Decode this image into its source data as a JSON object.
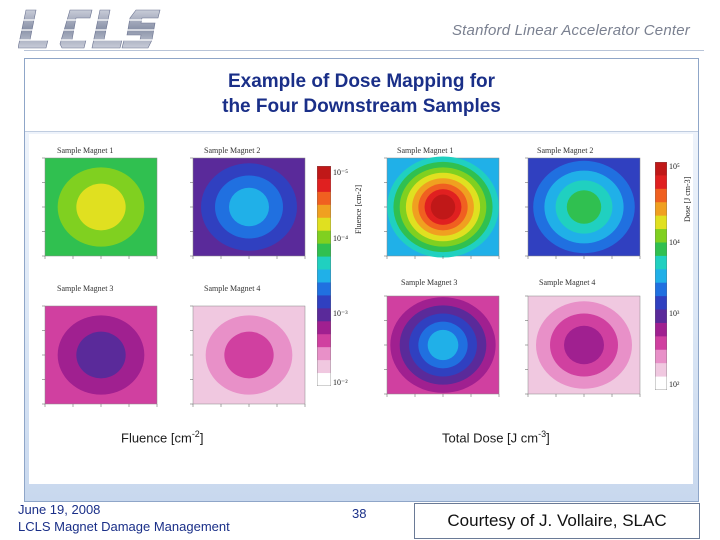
{
  "header": {
    "logo_text": "LCLS",
    "organization": "Stanford Linear Accelerator Center"
  },
  "slide": {
    "title_line1": "Example of Dose Mapping for",
    "title_line2": "the Four Downstream Samples"
  },
  "figure": {
    "fluence_maps": [
      {
        "label": "Sample Magnet 1",
        "center_color": "#e8e020"
      },
      {
        "label": "Sample Magnet 2",
        "center_color": "#2aa0e8"
      },
      {
        "label": "Sample Magnet 3",
        "center_color": "#3a2a9a"
      },
      {
        "label": "Sample Magnet 4",
        "center_color": "#e0109a"
      }
    ],
    "dose_maps": [
      {
        "label": "Sample Magnet 1",
        "center_color": "#e01010"
      },
      {
        "label": "Sample Magnet 2",
        "center_color": "#20d040"
      },
      {
        "label": "Sample Magnet 3",
        "center_color": "#20c0e0"
      },
      {
        "label": "Sample Magnet 4",
        "center_color": "#b0208c"
      }
    ],
    "fluence_colorbar": {
      "axis_label": "Fluence [cm-2]",
      "ticks": [
        "10⁻⁵",
        "10⁻⁴",
        "10⁻³",
        "10⁻²"
      ]
    },
    "dose_colorbar": {
      "axis_label": "Dose [J cm-3]",
      "ticks": [
        "10⁵",
        "10⁴",
        "10³",
        "10²"
      ]
    },
    "colors": {
      "scale": [
        "#ffffff",
        "#f0c8e0",
        "#e890c8",
        "#d040a0",
        "#a02090",
        "#5a2a9a",
        "#3040c0",
        "#2070e0",
        "#20b0e8",
        "#20d0c0",
        "#30c050",
        "#80d020",
        "#e0e020",
        "#f0a020",
        "#f06020",
        "#e02020",
        "#c01818"
      ]
    }
  },
  "captions": {
    "left_prefix": "Fluence [cm",
    "left_sup": "-2",
    "left_suffix": "]",
    "right_prefix": "Total Dose [J cm",
    "right_sup": "-3",
    "right_suffix": "]"
  },
  "footer": {
    "date": "June 19, 2008",
    "event": "LCLS Magnet Damage Management",
    "page": "38",
    "credit": "Courtesy of J. Vollaire, SLAC"
  }
}
